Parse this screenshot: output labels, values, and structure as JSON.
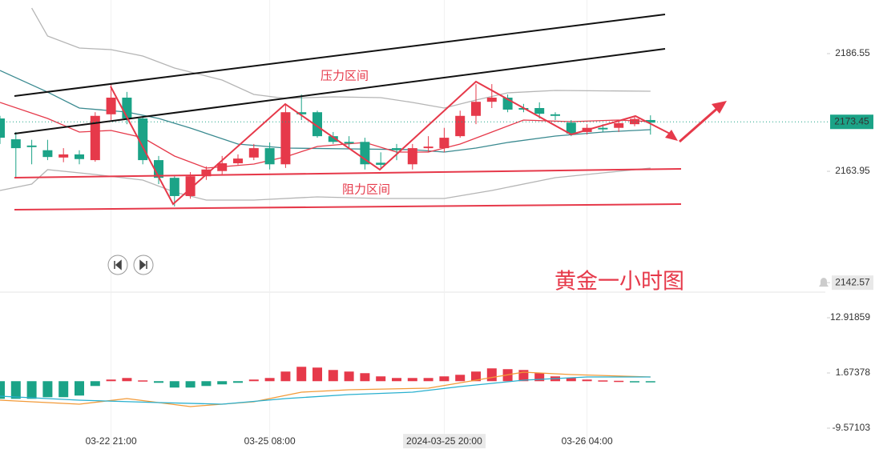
{
  "chart_data": [
    {
      "type": "candlestick",
      "up_color": "#e6394a",
      "down_color": "#1ba387",
      "open": [
        2174.1,
        2170.1,
        2168.9,
        2168.0,
        2166.6,
        2167.2,
        2166.1,
        2174.9,
        2178.1,
        2174.1,
        2166.1,
        2162.7,
        2159.2,
        2163.0,
        2164.0,
        2165.5,
        2166.6,
        2168.4,
        2165.3,
        2175.3,
        2175.3,
        2170.7,
        2169.6,
        2169.6,
        2165.6,
        2168.4,
        2165.3,
        2168.4,
        2168.4,
        2170.7,
        2174.6,
        2177.3,
        2178.1,
        2176.1,
        2176.1,
        2174.9,
        2173.3,
        2171.5,
        2172.3,
        2172.3,
        2173.0,
        2173.8
      ],
      "high": [
        2174.6,
        2171.5,
        2170.0,
        2170.0,
        2168.4,
        2168.0,
        2175.3,
        2180.7,
        2179.2,
        2174.6,
        2166.9,
        2163.0,
        2163.8,
        2164.9,
        2166.9,
        2167.2,
        2169.2,
        2169.5,
        2176.9,
        2178.7,
        2175.6,
        2171.5,
        2170.7,
        2170.4,
        2167.6,
        2169.2,
        2169.2,
        2170.7,
        2172.3,
        2175.6,
        2180.7,
        2180.7,
        2178.7,
        2176.9,
        2177.2,
        2175.3,
        2173.8,
        2173.0,
        2173.0,
        2173.8,
        2174.6,
        2174.7
      ],
      "low": [
        2169.2,
        2162.7,
        2165.3,
        2166.1,
        2165.7,
        2165.3,
        2165.8,
        2173.8,
        2173.0,
        2165.3,
        2161.5,
        2157.2,
        2158.7,
        2162.3,
        2163.4,
        2165.2,
        2166.1,
        2164.3,
        2164.6,
        2173.8,
        2170.4,
        2169.2,
        2168.4,
        2164.3,
        2164.3,
        2166.1,
        2164.3,
        2167.6,
        2167.6,
        2170.4,
        2173.0,
        2176.1,
        2175.3,
        2175.3,
        2174.1,
        2173.8,
        2170.7,
        2171.0,
        2171.5,
        2171.5,
        2172.6,
        2171.0
      ],
      "close": [
        2170.4,
        2168.4,
        2168.6,
        2166.7,
        2167.2,
        2166.3,
        2174.6,
        2178.1,
        2174.1,
        2166.1,
        2162.7,
        2159.2,
        2163.0,
        2164.3,
        2165.5,
        2166.4,
        2168.4,
        2165.3,
        2175.3,
        2174.9,
        2170.7,
        2169.6,
        2169.3,
        2165.3,
        2165.2,
        2168.0,
        2168.4,
        2168.7,
        2170.4,
        2174.6,
        2177.3,
        2178.1,
        2175.8,
        2175.8,
        2175.0,
        2174.6,
        2171.2,
        2172.3,
        2172.0,
        2173.2,
        2174.0,
        2173.3
      ],
      "lines": [
        {
          "color": "#b5b5b5",
          "x": [
            2,
            3,
            5,
            7,
            9,
            11,
            14,
            16,
            18,
            21,
            24,
            26,
            28,
            30,
            32,
            35,
            41
          ],
          "values": [
            2195.31,
            2189.93,
            2187.63,
            2187.32,
            2186.09,
            2183.79,
            2181.48,
            2178.71,
            2177.95,
            2178.25,
            2178.1,
            2177.18,
            2176.1,
            2177.64,
            2179.02,
            2179.48,
            2179.33
          ]
        },
        {
          "color": "#b5b5b5",
          "x": [
            0,
            2,
            3,
            6,
            9,
            11,
            13,
            16,
            20,
            24,
            28,
            31,
            35,
            38,
            41
          ],
          "values": [
            2160.27,
            2161.5,
            2164.27,
            2163.34,
            2162.27,
            2159.96,
            2158.43,
            2158.43,
            2159.04,
            2158.73,
            2158.73,
            2160.27,
            2162.73,
            2163.65,
            2164.57
          ]
        },
        {
          "color": "#3a8a90",
          "x": [
            0,
            3,
            5,
            8,
            10,
            12,
            15,
            18,
            22,
            26,
            28,
            30,
            32,
            35,
            38,
            41
          ],
          "values": [
            2183.32,
            2179.17,
            2176.1,
            2175.33,
            2174.1,
            2172.26,
            2169.18,
            2168.42,
            2168.26,
            2168.11,
            2167.65,
            2168.42,
            2169.49,
            2170.72,
            2171.49,
            2171.95
          ]
        },
        {
          "color": "#e6394a",
          "x": [
            0,
            3,
            5,
            7,
            9,
            11,
            13,
            16,
            18,
            20,
            23,
            25,
            27,
            29,
            31,
            33,
            36,
            39,
            41
          ],
          "values": [
            2177.18,
            2174.1,
            2171.49,
            2171.8,
            2170.41,
            2166.88,
            2164.57,
            2165.34,
            2166.73,
            2168.72,
            2169.49,
            2167.65,
            2167.65,
            2169.18,
            2171.49,
            2173.8,
            2173.49,
            2173.8,
            2173.49
          ]
        }
      ],
      "ylim": [
        2140.75,
        2196.85
      ],
      "yticks": [
        2186.55,
        2163.95,
        2142.57
      ],
      "last_price": 2173.45,
      "xticks": [
        {
          "value": 7,
          "label": "03-22 21:00"
        },
        {
          "value": 17,
          "label": "03-25 08:00"
        },
        {
          "value": 28,
          "label": "2024-03-25 20:00"
        },
        {
          "value": 37,
          "label": "03-26 04:00"
        }
      ],
      "annotations": [
        "压力区间",
        "阻力区间",
        "黄金一小时图"
      ]
    },
    {
      "type": "macd",
      "up_color": "#e6394a",
      "down_color": "#1ba387",
      "values": [
        -3.59,
        -3.59,
        -3.59,
        -3.26,
        -3.26,
        -2.93,
        -0.98,
        0.33,
        0.65,
        0.16,
        -0.33,
        -1.3,
        -1.3,
        -0.98,
        -0.65,
        -0.33,
        0.33,
        0.65,
        1.96,
        2.93,
        2.77,
        2.28,
        1.96,
        1.63,
        0.98,
        0.65,
        0.65,
        0.65,
        0.98,
        1.3,
        1.96,
        2.61,
        2.45,
        2.28,
        1.63,
        0.98,
        0.65,
        0.33,
        0.16,
        0.08,
        -0.08,
        -0.08
      ],
      "lines": [
        {
          "color": "#f29a38",
          "x": [
            0,
            5,
            8,
            12,
            16,
            19,
            22,
            27,
            30,
            33,
            36,
            41
          ],
          "values": [
            -3.87,
            -4.68,
            -3.54,
            -5.17,
            -4.19,
            -2.24,
            -1.75,
            -1.42,
            0.21,
            1.84,
            1.35,
            0.86
          ]
        },
        {
          "color": "#29b0cf",
          "x": [
            0,
            5,
            10,
            14,
            18,
            22,
            26,
            29,
            33,
            37,
            41
          ],
          "values": [
            -3.05,
            -3.87,
            -4.36,
            -4.68,
            -3.54,
            -2.73,
            -2.24,
            -1.1,
            0.21,
            0.86,
            0.86
          ]
        }
      ],
      "ylim": [
        -14.63,
        18.14
      ],
      "yticks": [
        12.91859,
        1.67378,
        -9.57103
      ]
    }
  ]
}
